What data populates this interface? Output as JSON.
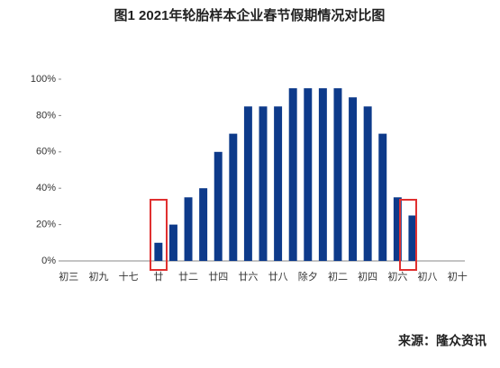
{
  "chart_data": {
    "type": "bar",
    "title": "图1 2021年轮胎样本企业春节假期情况对比图",
    "source": "来源：隆众资讯",
    "categories": [
      "初三",
      null,
      "初九",
      null,
      "十七",
      null,
      "廿",
      null,
      "廿二",
      null,
      "廿四",
      null,
      "廿六",
      null,
      "廿八",
      null,
      "除夕",
      null,
      "初二",
      null,
      "初四",
      null,
      "初六",
      null,
      "初八",
      null,
      "初十"
    ],
    "values": [
      0,
      0,
      0,
      0,
      0,
      0,
      10,
      20,
      35,
      40,
      60,
      70,
      85,
      85,
      85,
      95,
      95,
      95,
      95,
      90,
      85,
      70,
      35,
      25,
      0,
      0,
      0
    ],
    "color": "#0d3a8a",
    "ylim": [
      0,
      100
    ],
    "yticks": [
      {
        "value": 0,
        "label": "0%"
      },
      {
        "value": 20,
        "label": "20%"
      },
      {
        "value": 40,
        "label": "40%"
      },
      {
        "value": 60,
        "label": "60%"
      },
      {
        "value": 80,
        "label": "80%"
      },
      {
        "value": 100,
        "label": "100%"
      }
    ],
    "grid": false
  }
}
